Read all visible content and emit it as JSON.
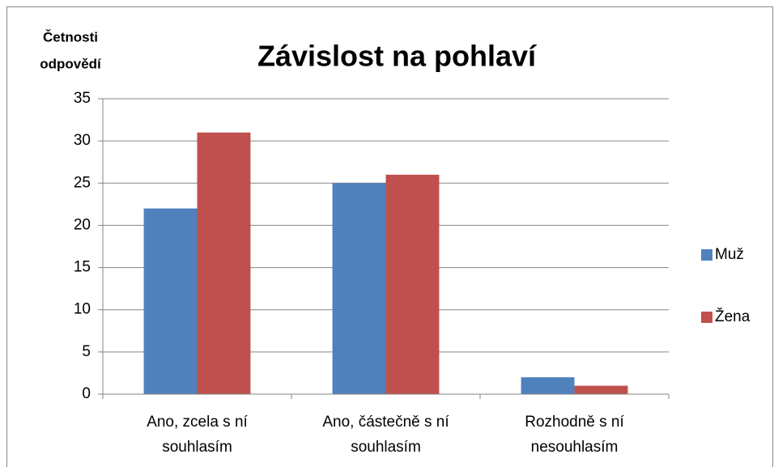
{
  "chart_data": {
    "type": "bar",
    "title": "Závislost na pohlaví",
    "y_label": [
      "Četnosti",
      "odpovědí"
    ],
    "categories": [
      [
        "Ano, zcela s ní",
        "souhlasím"
      ],
      [
        "Ano, částečně s ní",
        "souhlasím"
      ],
      [
        "Rozhodně s ní",
        "nesouhlasím"
      ]
    ],
    "series": [
      {
        "name": "Muž",
        "color": "#4f81bd",
        "values": [
          22,
          25,
          2
        ]
      },
      {
        "name": "Žena",
        "color": "#c0504d",
        "values": [
          31,
          26,
          1
        ]
      }
    ],
    "ylim": [
      0,
      35
    ],
    "yticks": [
      0,
      5,
      10,
      15,
      20,
      25,
      30,
      35
    ],
    "grid": true,
    "legend": "right"
  }
}
